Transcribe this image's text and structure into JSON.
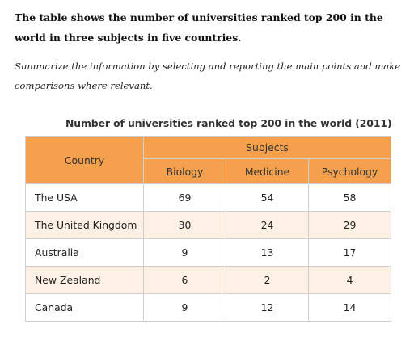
{
  "task": {
    "title": "The table shows the number of universities ranked top 200 in the world in three subjects in five countries.",
    "instruction": "Summarize the information by selecting and reporting the main points and make comparisons where relevant."
  },
  "table": {
    "caption": "Number of universities ranked top 200 in the world (2011)",
    "header_country": "Country",
    "header_group": "Subjects",
    "header_color": "#f5a04d",
    "stripe_color": "#fdf1e6",
    "subjects": [
      "Biology",
      "Medicine",
      "Psychology"
    ],
    "rows": [
      {
        "country": "The USA",
        "values": [
          "69",
          "54",
          "58"
        ]
      },
      {
        "country": "The United Kingdom",
        "values": [
          "30",
          "24",
          "29"
        ]
      },
      {
        "country": "Australia",
        "values": [
          "9",
          "13",
          "17"
        ]
      },
      {
        "country": "New Zealand",
        "values": [
          "6",
          "2",
          "4"
        ]
      },
      {
        "country": "Canada",
        "values": [
          "9",
          "12",
          "14"
        ]
      }
    ]
  }
}
